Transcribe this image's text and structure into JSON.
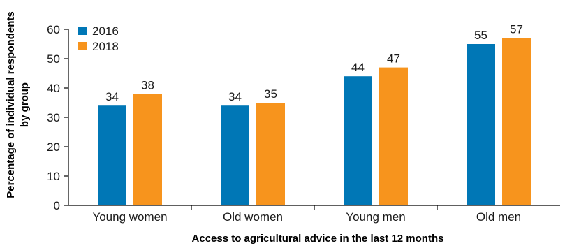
{
  "chart_data": {
    "type": "bar",
    "title": "",
    "xlabel": "Access to agricultural advice in the last 12 months",
    "ylabel_lines": [
      "Percentage of individual respondents",
      "by group"
    ],
    "categories": [
      "Young women",
      "Old women",
      "Young men",
      "Old men"
    ],
    "series": [
      {
        "name": "2016",
        "values": [
          34,
          34,
          44,
          55
        ],
        "color": "#0077b6"
      },
      {
        "name": "2018",
        "values": [
          38,
          35,
          47,
          57
        ],
        "color": "#f7941d"
      }
    ],
    "ylim": [
      0,
      60
    ],
    "yticks": [
      0,
      10,
      20,
      30,
      40,
      50,
      60
    ],
    "grid": false,
    "legend_position": "top-left"
  }
}
